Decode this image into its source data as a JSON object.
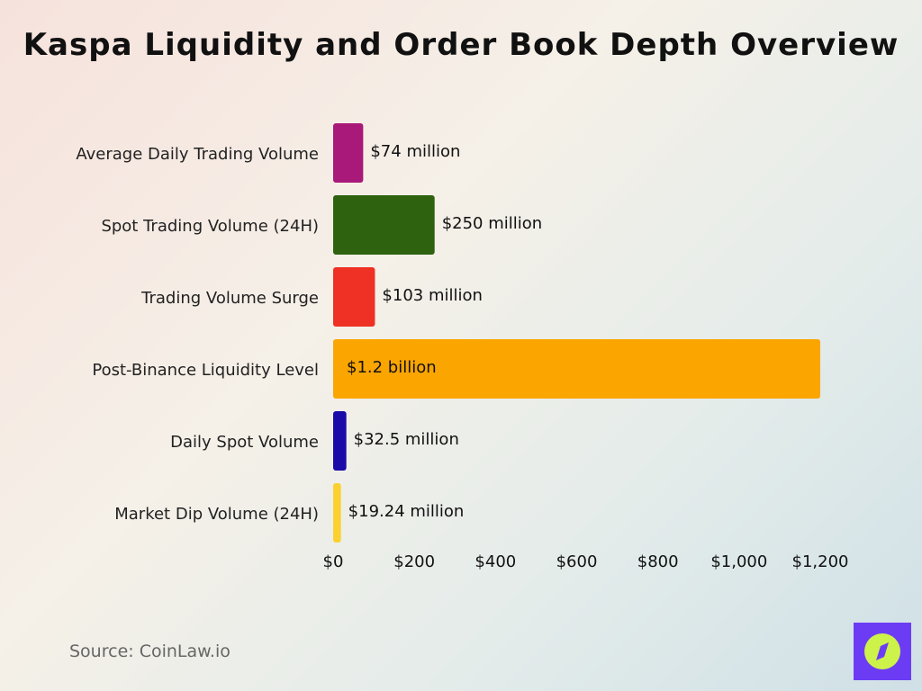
{
  "chart_data": {
    "type": "bar",
    "orientation": "horizontal",
    "title": "Kaspa Liquidity and Order Book Depth Overview",
    "categories": [
      "Average Daily Trading Volume",
      "Spot Trading Volume (24H)",
      "Trading Volume Surge",
      "Post-Binance Liquidity Level",
      "Daily Spot Volume",
      "Market Dip Volume (24H)"
    ],
    "values": [
      74,
      250,
      103,
      1200,
      32.5,
      19.24
    ],
    "unit": "million USD",
    "data_labels": [
      "$74 million",
      "$250 million",
      "$103 million",
      "$1.2 billion",
      "$32.5 million",
      "$19.24 million"
    ],
    "colors": [
      "#a8197a",
      "#2f620f",
      "#ee3124",
      "#fba500",
      "#1a0aa8",
      "#fbd130"
    ],
    "xlim": [
      0,
      1200
    ],
    "xticks": [
      0,
      200,
      400,
      600,
      800,
      1000,
      1200
    ],
    "xtick_labels": [
      "$0",
      "$200",
      "$400",
      "$600",
      "$800",
      "$1,000",
      "$1,200"
    ],
    "grid": false
  },
  "source": "Source: CoinLaw.io",
  "logo": {
    "icon": "compass-icon",
    "colors": [
      "#6c3cf5",
      "#cdf24a"
    ]
  }
}
